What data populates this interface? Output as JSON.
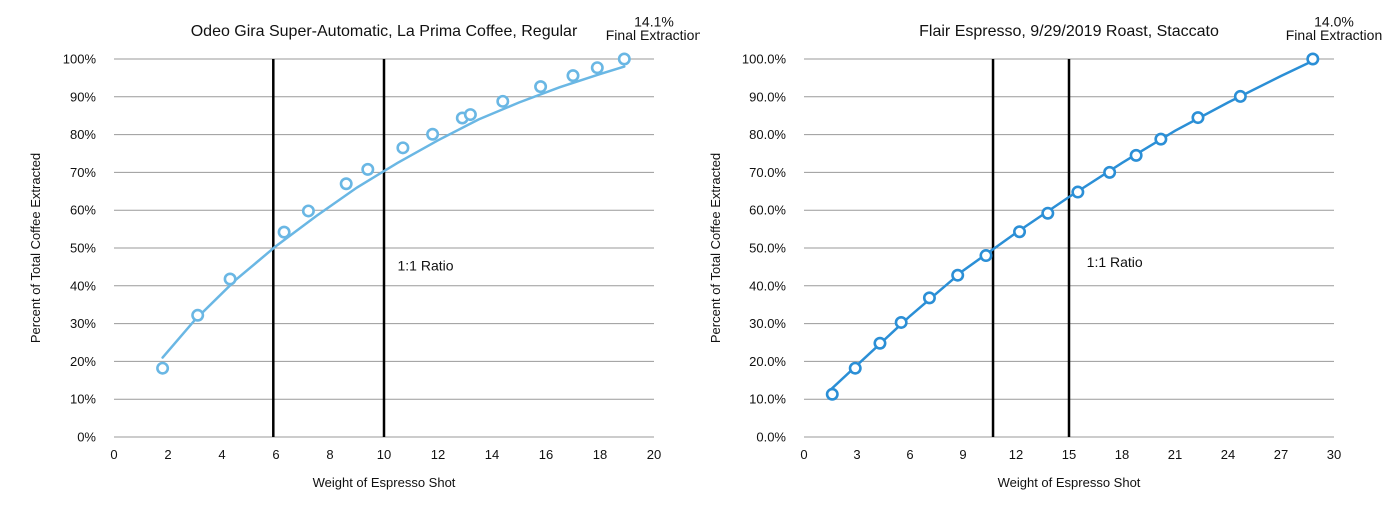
{
  "chart_data": [
    {
      "type": "scatter",
      "title": "Odeo Gira Super-Automatic, La Prima Coffee, Regular",
      "xlabel": "Weight of Espresso Shot",
      "ylabel": "Percent of Total Coffee Extracted",
      "xlim": [
        0,
        20
      ],
      "ylim": [
        0,
        100
      ],
      "x_ticks": [
        0,
        2,
        4,
        6,
        8,
        10,
        12,
        14,
        16,
        18,
        20
      ],
      "y_ticks": [
        0,
        10,
        20,
        30,
        40,
        50,
        60,
        70,
        80,
        90,
        100
      ],
      "y_tick_labels": [
        "0%",
        "10%",
        "20%",
        "30%",
        "40%",
        "50%",
        "60%",
        "70%",
        "80%",
        "90%",
        "100%"
      ],
      "grid": true,
      "color": "#6ab7e4",
      "series": [
        {
          "x": [
            1.8,
            3.1,
            4.3,
            6.3,
            7.2,
            8.6,
            9.4,
            10.7,
            11.8,
            12.9,
            13.2,
            14.4,
            15.8,
            17.0,
            17.9,
            18.9
          ],
          "y": [
            18.2,
            32.2,
            41.8,
            54.2,
            59.8,
            67.0,
            70.8,
            76.5,
            80.1,
            84.4,
            85.3,
            88.8,
            92.7,
            95.6,
            97.7,
            100.0
          ]
        }
      ],
      "trendline": {
        "x": [
          1.8,
          3,
          4.5,
          6,
          7.5,
          9,
          10.5,
          12,
          13.5,
          15,
          16.5,
          18,
          18.9
        ],
        "y": [
          21.0,
          31.0,
          41.5,
          50.5,
          58.5,
          66.0,
          72.5,
          78.5,
          84.0,
          88.5,
          92.5,
          96.0,
          98.0
        ]
      },
      "vlines": [
        5.9,
        10.0
      ],
      "annotations": [
        {
          "text": "1:1 Ratio",
          "x": 10.5,
          "y": 44
        },
        {
          "text": "14.1%",
          "x": 20.0,
          "y": 108.6
        },
        {
          "text": "Final Extraction",
          "x": 20.0,
          "y": 105.0
        }
      ]
    },
    {
      "type": "scatter",
      "title": "Flair Espresso, 9/29/2019 Roast, Staccato",
      "xlabel": "Weight of Espresso Shot",
      "ylabel": "Percent of Total Coffee Extracted",
      "xlim": [
        0,
        30
      ],
      "ylim": [
        0,
        100
      ],
      "x_ticks": [
        0,
        3,
        6,
        9,
        12,
        15,
        18,
        21,
        24,
        27,
        30
      ],
      "y_ticks": [
        0,
        10,
        20,
        30,
        40,
        50,
        60,
        70,
        80,
        90,
        100
      ],
      "y_tick_labels": [
        "0.0%",
        "10.0%",
        "20.0%",
        "30.0%",
        "40.0%",
        "50.0%",
        "60.0%",
        "70.0%",
        "80.0%",
        "90.0%",
        "100.0%"
      ],
      "grid": true,
      "color": "#2b8fd6",
      "series": [
        {
          "x": [
            1.6,
            2.9,
            4.3,
            5.5,
            7.1,
            8.7,
            10.3,
            12.2,
            13.8,
            15.5,
            17.3,
            18.8,
            20.2,
            22.3,
            24.7,
            28.8
          ],
          "y": [
            11.3,
            18.2,
            24.8,
            30.3,
            36.8,
            42.8,
            48.0,
            54.3,
            59.2,
            64.8,
            70.0,
            74.5,
            78.8,
            84.5,
            90.1,
            100.0
          ]
        }
      ],
      "trendline": {
        "x": [
          1.5,
          3,
          6,
          9,
          12,
          15,
          18,
          21,
          24,
          27,
          28.8
        ],
        "y": [
          12.5,
          19.0,
          32.0,
          44.0,
          54.0,
          63.5,
          72.5,
          81.0,
          88.5,
          95.5,
          99.5
        ]
      },
      "vlines": [
        10.7,
        15.0
      ],
      "annotations": [
        {
          "text": "1:1 Ratio",
          "x": 16.0,
          "y": 45
        },
        {
          "text": "14.0%",
          "x": 30.0,
          "y": 108.6
        },
        {
          "text": "Final Extraction",
          "x": 30.0,
          "y": 105.0
        }
      ]
    }
  ]
}
